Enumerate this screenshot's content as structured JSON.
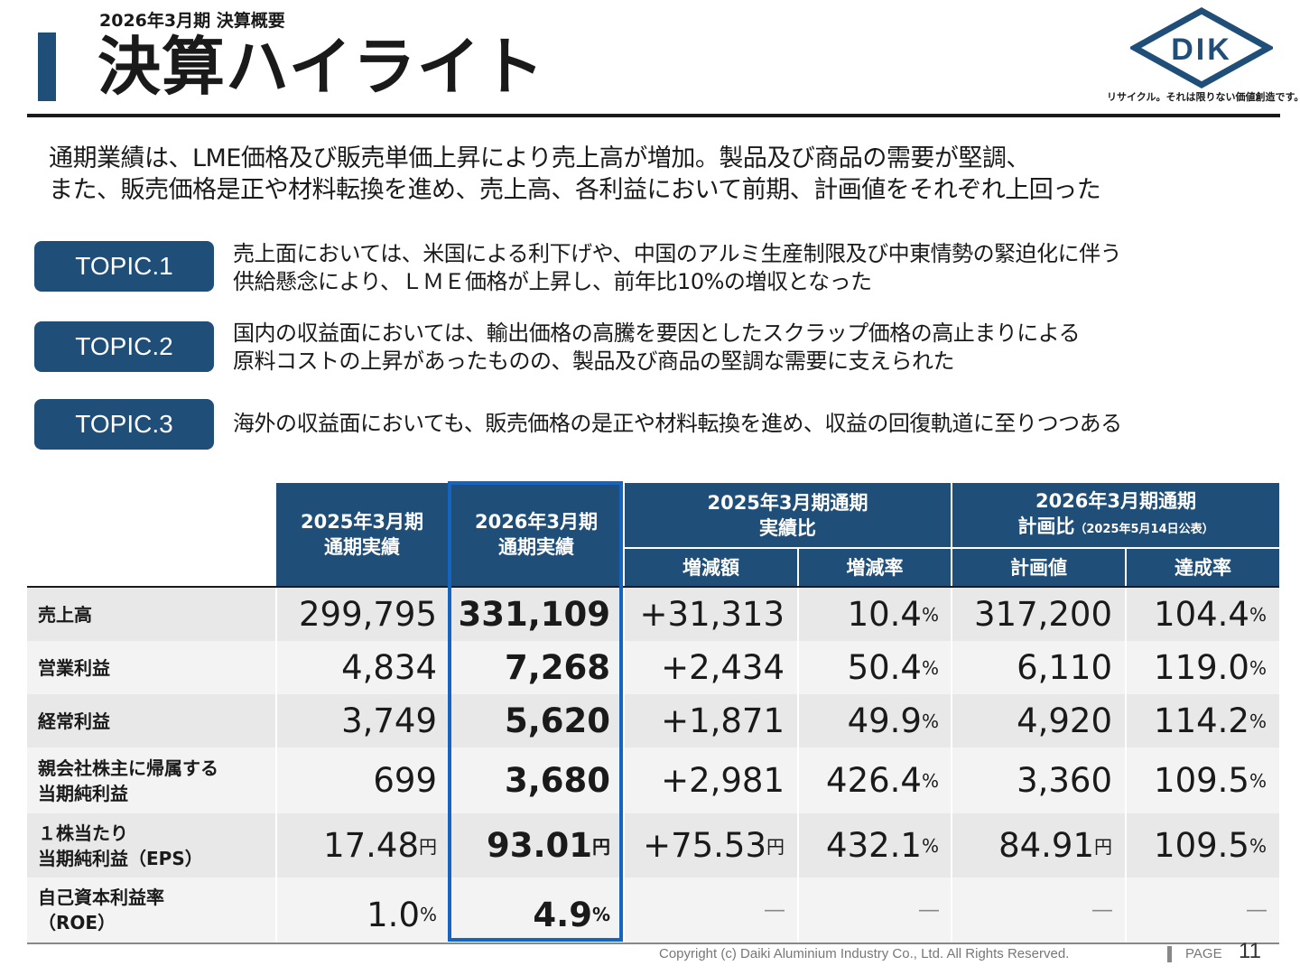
{
  "header": {
    "subtitle": "2026年3月期 決算概要",
    "title": "決算ハイライト",
    "logo_text": "DIK",
    "tagline": "リサイクル。それは限りない価値創造です。"
  },
  "summary": {
    "line1": "通期業績は、LME価格及び販売単価上昇により売上高が増加。製品及び商品の需要が堅調、",
    "line2": "また、販売価格是正や材料転換を進め、売上高、各利益において前期、計画値をそれぞれ上回った"
  },
  "topics": [
    {
      "label": "TOPIC.1",
      "line1": "売上面においては、米国による利下げや、中国のアルミ生産制限及び中東情勢の緊迫化に伴う",
      "line2": "供給懸念により、ＬＭＥ価格が上昇し、前年比10%の増収となった"
    },
    {
      "label": "TOPIC.2",
      "line1": "国内の収益面においては、輸出価格の高騰を要因としたスクラップ価格の高止まりによる",
      "line2": "原料コストの上昇があったものの、製品及び商品の堅調な需要に支えられた"
    },
    {
      "label": "TOPIC.3",
      "line1": "海外の収益面においても、販売価格の是正や材料転換を進め、収益の回復軌道に至りつつある",
      "line2": ""
    }
  ],
  "table": {
    "headers": {
      "prev_actual_l1": "2025年3月期",
      "prev_actual_l2": "通期実績",
      "curr_actual_l1": "2026年3月期",
      "curr_actual_l2": "通期実績",
      "vs_prev_l1": "2025年3月期通期",
      "vs_prev_l2": "実績比",
      "vs_plan_l1": "2026年3月期通期",
      "vs_plan_l2": "計画比",
      "vs_plan_note": "（2025年5月14日公表）",
      "change_amount": "増減額",
      "change_rate": "増減率",
      "plan_value": "計画値",
      "achievement_rate": "達成率"
    },
    "rows": [
      {
        "label1": "売上高",
        "label2": "",
        "prev": "299,795",
        "prev_unit": "",
        "curr": "331,109",
        "curr_unit": "",
        "diff": "+31,313",
        "diff_unit": "",
        "rate": "10.4",
        "rate_unit": "%",
        "plan": "317,200",
        "plan_unit": "",
        "ach": "104.4",
        "ach_unit": "%"
      },
      {
        "label1": "営業利益",
        "label2": "",
        "prev": "4,834",
        "prev_unit": "",
        "curr": "7,268",
        "curr_unit": "",
        "diff": "+2,434",
        "diff_unit": "",
        "rate": "50.4",
        "rate_unit": "%",
        "plan": "6,110",
        "plan_unit": "",
        "ach": "119.0",
        "ach_unit": "%"
      },
      {
        "label1": "経常利益",
        "label2": "",
        "prev": "3,749",
        "prev_unit": "",
        "curr": "5,620",
        "curr_unit": "",
        "diff": "+1,871",
        "diff_unit": "",
        "rate": "49.9",
        "rate_unit": "%",
        "plan": "4,920",
        "plan_unit": "",
        "ach": "114.2",
        "ach_unit": "%"
      },
      {
        "label1": "親会社株主に帰属する",
        "label2": "当期純利益",
        "prev": "699",
        "prev_unit": "",
        "curr": "3,680",
        "curr_unit": "",
        "diff": "+2,981",
        "diff_unit": "",
        "rate": "426.4",
        "rate_unit": "%",
        "plan": "3,360",
        "plan_unit": "",
        "ach": "109.5",
        "ach_unit": "%"
      },
      {
        "label1": "１株当たり",
        "label2": "当期純利益（EPS）",
        "prev": "17.48",
        "prev_unit": "円",
        "curr": "93.01",
        "curr_unit": "円",
        "diff": "+75.53",
        "diff_unit": "円",
        "rate": "432.1",
        "rate_unit": "%",
        "plan": "84.91",
        "plan_unit": "円",
        "ach": "109.5",
        "ach_unit": "%"
      },
      {
        "label1": "自己資本利益率",
        "label2": "（ROE）",
        "prev": "1.0",
        "prev_unit": "%",
        "curr": "4.9",
        "curr_unit": "%",
        "diff": "―",
        "diff_unit": "",
        "rate": "―",
        "rate_unit": "",
        "plan": "―",
        "plan_unit": "",
        "ach": "―",
        "ach_unit": ""
      }
    ]
  },
  "footer": {
    "copyright": "Copyright (c) Daiki Aluminium Industry Co., Ltd. All Rights Reserved.",
    "page_label": "PAGE",
    "page_number": "11"
  },
  "colors": {
    "navy": "#1f4e79",
    "highlight_border": "#1565c0",
    "row_dark": "#e8e8e8",
    "row_light": "#f3f3f3"
  }
}
